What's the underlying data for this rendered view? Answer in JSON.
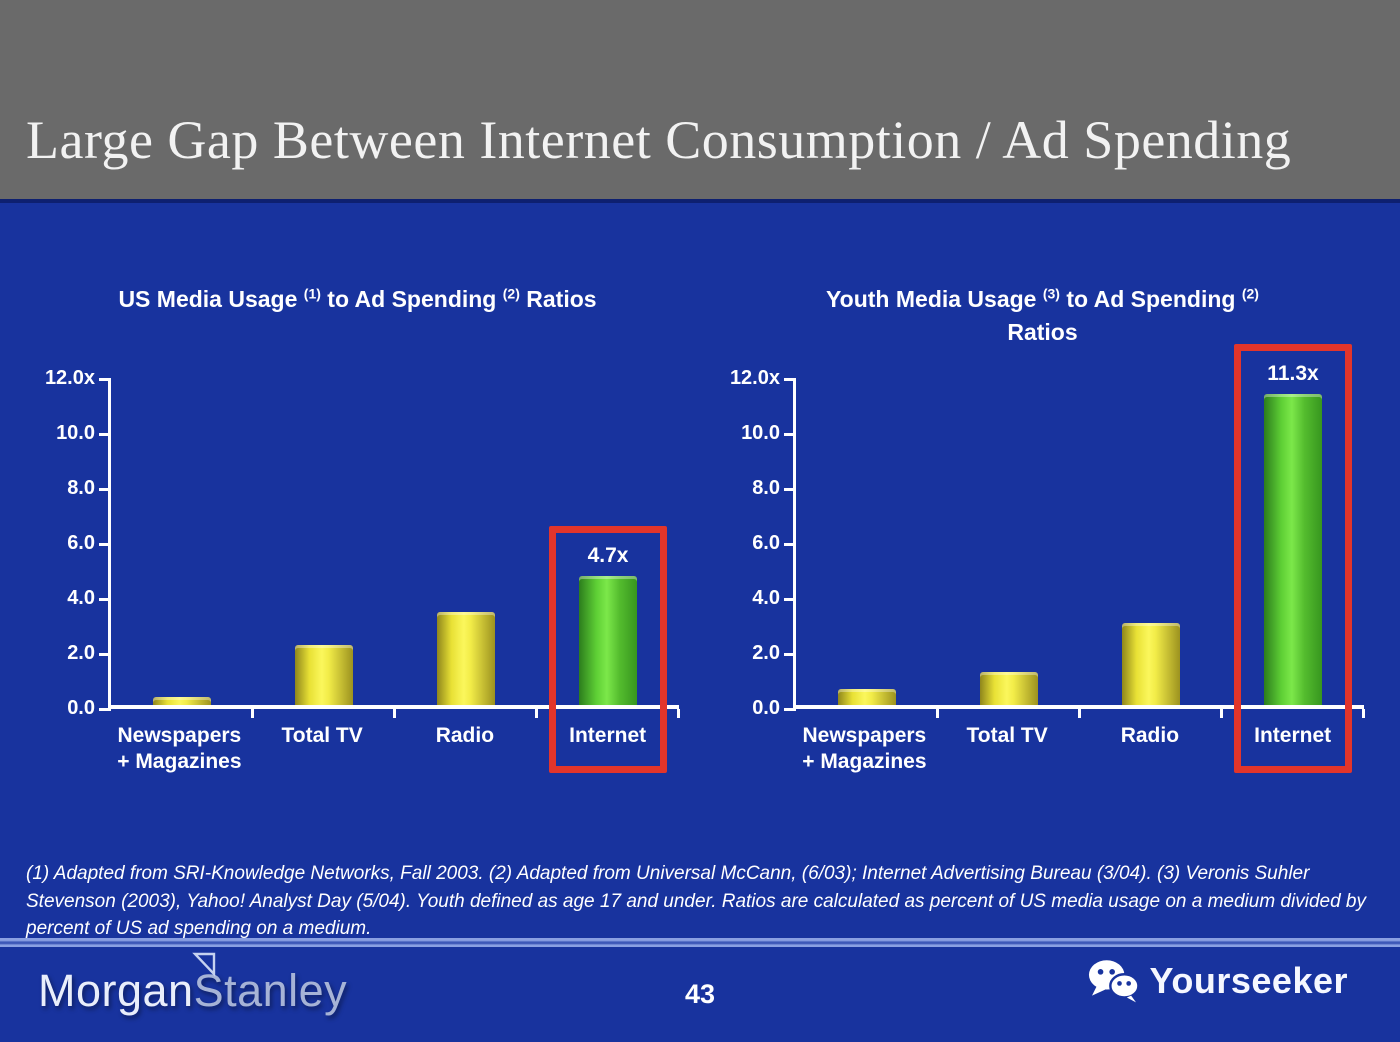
{
  "slide": {
    "title": "Large Gap Between Internet Consumption / Ad Spending",
    "footnote": "(1) Adapted from SRI-Knowledge Networks, Fall 2003.  (2) Adapted from Universal McCann, (6/03); Internet Advertising Bureau (3/04). (3) Veronis Suhler Stevenson (2003), Yahoo! Analyst Day (5/04).  Youth defined as age 17 and under.  Ratios are calculated as percent of US media usage on a medium divided by percent of US ad spending on a medium."
  },
  "footer": {
    "brand_morgan": "Morgan",
    "brand_stanley": "Stanley",
    "page_number": "43",
    "watermark_label": "Yourseeker",
    "watermark_icon": "wechat-icon"
  },
  "colors": {
    "header_bg": "#6A6A6A",
    "body_bg": "#18339E",
    "bar_yellow": "#F2EC48",
    "bar_green": "#5FD335",
    "highlight_red": "#E2352B",
    "text": "#FFFFFF"
  },
  "chart_data": [
    {
      "type": "bar",
      "title": "US Media Usage (1) to Ad Spending (2) Ratios",
      "title_lines": [
        [
          {
            "t": "US Media Usage "
          },
          {
            "sup": "(1)"
          },
          {
            "t": " to Ad Spending "
          },
          {
            "sup": "(2)"
          },
          {
            "t": " Ratios"
          }
        ]
      ],
      "categories": [
        "Newspapers\n+ Magazines",
        "Total TV",
        "Radio",
        "Internet"
      ],
      "values": [
        0.3,
        2.2,
        3.4,
        4.7
      ],
      "bar_styles": [
        "yellow",
        "yellow",
        "yellow",
        "green"
      ],
      "value_labels": [
        null,
        null,
        null,
        "4.7x"
      ],
      "y_ticks": [
        "12.0x",
        "10.0",
        "8.0",
        "6.0",
        "4.0",
        "2.0",
        "0.0"
      ],
      "ylim": [
        0,
        12
      ],
      "grid": false,
      "legend": false,
      "highlight_category": "Internet"
    },
    {
      "type": "bar",
      "title": "Youth Media Usage (3) to Ad Spending (2) Ratios",
      "title_lines": [
        [
          {
            "t": "Youth Media Usage "
          },
          {
            "sup": "(3)"
          },
          {
            "t": " to Ad Spending "
          },
          {
            "sup": "(2)"
          }
        ],
        [
          {
            "t": "Ratios"
          }
        ]
      ],
      "categories": [
        "Newspapers\n+ Magazines",
        "Total TV",
        "Radio",
        "Internet"
      ],
      "values": [
        0.6,
        1.2,
        3.0,
        11.3
      ],
      "bar_styles": [
        "yellow",
        "yellow",
        "yellow",
        "green"
      ],
      "value_labels": [
        null,
        null,
        null,
        "11.3x"
      ],
      "y_ticks": [
        "12.0x",
        "10.0",
        "8.0",
        "6.0",
        "4.0",
        "2.0",
        "0.0"
      ],
      "ylim": [
        0,
        12
      ],
      "grid": false,
      "legend": false,
      "highlight_category": "Internet"
    }
  ]
}
